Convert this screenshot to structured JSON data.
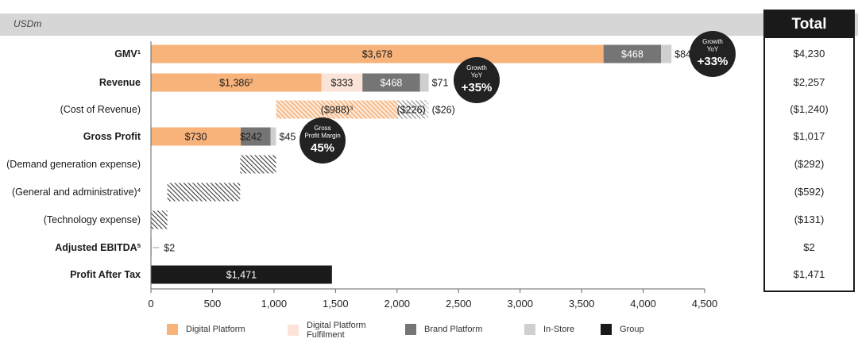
{
  "unit": "USDm",
  "total_header": "Total",
  "chart_data": {
    "type": "bar",
    "orientation": "horizontal-stacked",
    "xlim": [
      0,
      4500
    ],
    "xticks": [
      0,
      500,
      1000,
      1500,
      2000,
      2500,
      3000,
      3500,
      4000,
      4500
    ],
    "xtick_labels": [
      "0",
      "500",
      "1,000",
      "1,500",
      "2,000",
      "2,500",
      "3,000",
      "3,500",
      "4,000",
      "4,500"
    ],
    "grid": false,
    "legend_position": "bottom",
    "series": [
      {
        "name": "Digital Platform",
        "color": "#f7b37a"
      },
      {
        "name": "Digital Platform Fulfilment",
        "color": "#fce3d8"
      },
      {
        "name": "Brand Platform",
        "color": "#757575"
      },
      {
        "name": "In-Store",
        "color": "#cfcfcf"
      },
      {
        "name": "Group",
        "color": "#1a1a1a"
      }
    ],
    "rows": [
      {
        "label": "GMV",
        "sup": "1",
        "bold": true,
        "total": "$4,230",
        "segments": [
          {
            "start": 0,
            "end": 3678,
            "series": "Digital Platform",
            "label": "$3,678"
          },
          {
            "start": 3678,
            "end": 4146,
            "series": "Brand Platform",
            "label": "$468"
          },
          {
            "start": 4146,
            "end": 4230,
            "series": "In-Store",
            "label": "$84"
          }
        ]
      },
      {
        "label": "Revenue",
        "sup": "",
        "bold": true,
        "total": "$2,257",
        "segments": [
          {
            "start": 0,
            "end": 1386,
            "series": "Digital Platform",
            "label": "$1,386",
            "label_sup": "2"
          },
          {
            "start": 1386,
            "end": 1719,
            "series": "Digital Platform Fulfilment",
            "label": "$333"
          },
          {
            "start": 1719,
            "end": 2187,
            "series": "Brand Platform",
            "label": "$468"
          },
          {
            "start": 2187,
            "end": 2257,
            "series": "In-Store",
            "label": "$71"
          }
        ]
      },
      {
        "label": "(Cost of Revenue)",
        "sup": "",
        "bold": false,
        "total": "($1,240)",
        "segments": [
          {
            "start": 1017,
            "end": 2005,
            "series": "Digital Platform",
            "hatched": true,
            "label": "($988)",
            "label_sup": "3"
          },
          {
            "start": 2005,
            "end": 2231,
            "series": "Brand Platform",
            "hatched": true,
            "label": "($226)"
          },
          {
            "start": 2231,
            "end": 2257,
            "series": "In-Store",
            "hatched": true,
            "label": "($26)"
          }
        ]
      },
      {
        "label": "Gross Profit",
        "sup": "",
        "bold": true,
        "total": "$1,017",
        "segments": [
          {
            "start": 0,
            "end": 730,
            "series": "Digital Platform",
            "label": "$730"
          },
          {
            "start": 730,
            "end": 972,
            "series": "Brand Platform",
            "label": "$242"
          },
          {
            "start": 972,
            "end": 1017,
            "series": "In-Store",
            "label": "$45"
          }
        ]
      },
      {
        "label": "(Demand generation expense)",
        "sup": "",
        "bold": false,
        "total": "($292)",
        "segments": [
          {
            "start": 725,
            "end": 1017,
            "series": "Group",
            "hatched": true,
            "label": ""
          }
        ]
      },
      {
        "label": "(General and administrative)",
        "sup": "4",
        "bold": false,
        "total": "($592)",
        "segments": [
          {
            "start": 133,
            "end": 725,
            "series": "Group",
            "hatched": true,
            "label": ""
          }
        ]
      },
      {
        "label": "(Technology expense)",
        "sup": "",
        "bold": false,
        "total": "($131)",
        "segments": [
          {
            "start": 2,
            "end": 133,
            "series": "Group",
            "hatched": true,
            "label": ""
          }
        ]
      },
      {
        "label": "Adjusted EBITDA",
        "sup": "5",
        "bold": true,
        "total": "$2",
        "segments": [
          {
            "start": 0,
            "end": 2,
            "series": "Group",
            "label": "$2"
          }
        ]
      },
      {
        "label": "Profit After Tax",
        "sup": "",
        "bold": true,
        "total": "$1,471",
        "segments": [
          {
            "start": 0,
            "end": 1471,
            "series": "Group",
            "label": "$1,471"
          }
        ]
      }
    ],
    "annotations": [
      {
        "row": "GMV",
        "lines": [
          "Growth",
          "YoY"
        ],
        "value": "+33%"
      },
      {
        "row": "Revenue",
        "lines": [
          "Growth",
          "YoY"
        ],
        "value": "+35%"
      },
      {
        "row": "Gross Profit",
        "lines": [
          "Gross",
          "Profit Margin"
        ],
        "value": "45%"
      }
    ]
  }
}
